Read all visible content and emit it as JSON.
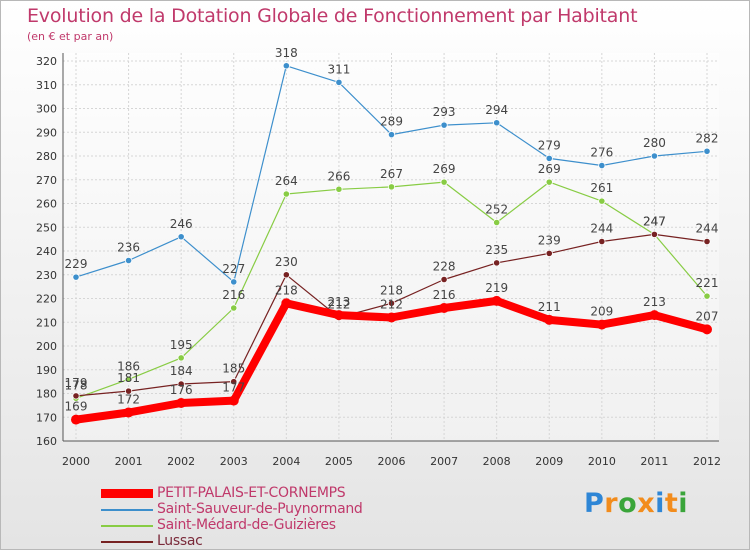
{
  "header": {
    "title": "Evolution de la Dotation Globale de Fonctionnement par Habitant",
    "subtitle": "(en € et par an)"
  },
  "chart_data": {
    "type": "line",
    "title": "Evolution de la Dotation Globale de Fonctionnement par Habitant",
    "subtitle": "(en € et par an)",
    "x": [
      "2000",
      "2001",
      "2002",
      "2003",
      "2004",
      "2005",
      "2006",
      "2007",
      "2008",
      "2009",
      "2010",
      "2011",
      "2012"
    ],
    "ylim": [
      160,
      320
    ],
    "yticks": [
      160,
      170,
      180,
      190,
      200,
      210,
      220,
      230,
      240,
      250,
      260,
      270,
      280,
      290,
      300,
      310,
      320
    ],
    "grid": true,
    "legend_position": "bottom-left",
    "series": [
      {
        "name": "PETIT-PALAIS-ET-CORNEMPS",
        "color": "#ff0000",
        "values": [
          169,
          172,
          176,
          177,
          218,
          213,
          212,
          216,
          219,
          211,
          209,
          213,
          207
        ]
      },
      {
        "name": "Saint-Sauveur-de-Puynormand",
        "color": "#3d8fcc",
        "values": [
          229,
          236,
          246,
          227,
          318,
          311,
          289,
          293,
          294,
          279,
          276,
          280,
          282
        ]
      },
      {
        "name": "Saint-Médard-de-Guizières",
        "color": "#88cc44",
        "values": [
          178,
          186,
          195,
          216,
          264,
          266,
          267,
          269,
          252,
          269,
          261,
          247,
          221
        ]
      },
      {
        "name": "Lussac",
        "color": "#772222",
        "values": [
          179,
          181,
          184,
          185,
          230,
          212,
          218,
          228,
          235,
          239,
          244,
          247,
          244
        ]
      }
    ]
  },
  "logo": {
    "letters": [
      {
        "char": "P",
        "color": "#2e86d6"
      },
      {
        "char": "r",
        "color": "#f28c1c"
      },
      {
        "char": "o",
        "color": "#3aa53a"
      },
      {
        "char": "x",
        "color": "#f28c1c"
      },
      {
        "char": "i",
        "color": "#2e86d6"
      },
      {
        "char": "t",
        "color": "#f28c1c"
      },
      {
        "char": "i",
        "color": "#3aa53a"
      }
    ]
  }
}
